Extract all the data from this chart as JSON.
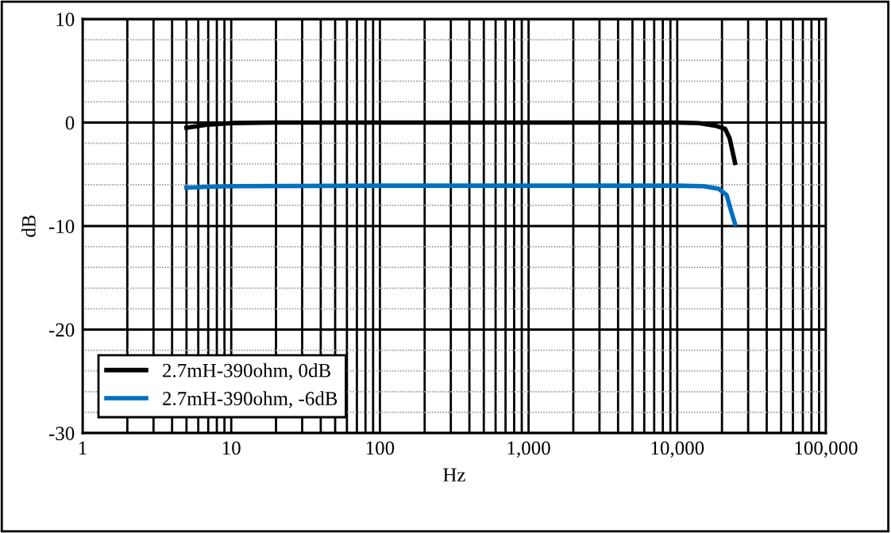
{
  "chart_data": {
    "type": "line",
    "xlabel": "Hz",
    "ylabel": "dB",
    "log": "x",
    "xlim": [
      1,
      100000
    ],
    "xticks": [
      {
        "value": 1,
        "label": "1"
      },
      {
        "value": 2,
        "label": null
      },
      {
        "value": 3,
        "label": null
      },
      {
        "value": 4,
        "label": null
      },
      {
        "value": 5,
        "label": null
      },
      {
        "value": 6,
        "label": null
      },
      {
        "value": 7,
        "label": null
      },
      {
        "value": 8,
        "label": null
      },
      {
        "value": 9,
        "label": null
      },
      {
        "value": 10,
        "label": "10"
      },
      {
        "value": 20,
        "label": null
      },
      {
        "value": 30,
        "label": null
      },
      {
        "value": 40,
        "label": null
      },
      {
        "value": 50,
        "label": null
      },
      {
        "value": 60,
        "label": null
      },
      {
        "value": 70,
        "label": null
      },
      {
        "value": 80,
        "label": null
      },
      {
        "value": 90,
        "label": null
      },
      {
        "value": 100,
        "label": "100"
      },
      {
        "value": 200,
        "label": null
      },
      {
        "value": 300,
        "label": null
      },
      {
        "value": 400,
        "label": null
      },
      {
        "value": 500,
        "label": null
      },
      {
        "value": 600,
        "label": null
      },
      {
        "value": 700,
        "label": null
      },
      {
        "value": 800,
        "label": null
      },
      {
        "value": 900,
        "label": null
      },
      {
        "value": 1000,
        "label": "1,000"
      },
      {
        "value": 2000,
        "label": null
      },
      {
        "value": 3000,
        "label": null
      },
      {
        "value": 4000,
        "label": null
      },
      {
        "value": 5000,
        "label": null
      },
      {
        "value": 6000,
        "label": null
      },
      {
        "value": 7000,
        "label": null
      },
      {
        "value": 8000,
        "label": null
      },
      {
        "value": 9000,
        "label": null
      },
      {
        "value": 10000,
        "label": "10,000"
      },
      {
        "value": 20000,
        "label": null
      },
      {
        "value": 30000,
        "label": null
      },
      {
        "value": 40000,
        "label": null
      },
      {
        "value": 50000,
        "label": null
      },
      {
        "value": 60000,
        "label": null
      },
      {
        "value": 70000,
        "label": null
      },
      {
        "value": 80000,
        "label": null
      },
      {
        "value": 90000,
        "label": null
      },
      {
        "value": 100000,
        "label": "100,000"
      }
    ],
    "ylim": [
      -30,
      10
    ],
    "yticks": [
      {
        "value": -30,
        "label": "-30"
      },
      {
        "value": -28,
        "label": null
      },
      {
        "value": -26,
        "label": null
      },
      {
        "value": -24,
        "label": null
      },
      {
        "value": -22,
        "label": null
      },
      {
        "value": -20,
        "label": "-20"
      },
      {
        "value": -18,
        "label": null
      },
      {
        "value": -16,
        "label": null
      },
      {
        "value": -14,
        "label": null
      },
      {
        "value": -12,
        "label": null
      },
      {
        "value": -10,
        "label": "-10"
      },
      {
        "value": -8,
        "label": null
      },
      {
        "value": -6,
        "label": null
      },
      {
        "value": -4,
        "label": null
      },
      {
        "value": -2,
        "label": null
      },
      0,
      {
        "value": 2,
        "label": null
      },
      {
        "value": 4,
        "label": null
      },
      {
        "value": 6,
        "label": null
      },
      {
        "value": 8,
        "label": null
      },
      10
    ],
    "grid": true,
    "legend": "bottom left",
    "line_style": "solid",
    "series": [
      {
        "name": "2.7mH-390ohm, 0dB",
        "color": "#000000",
        "x": [
          5,
          7,
          10,
          20,
          100,
          10000,
          14000,
          18000,
          21000,
          22500,
          24500
        ],
        "values": [
          -0.5,
          -0.2,
          -0.05,
          0,
          0,
          0,
          -0.05,
          -0.3,
          -0.6,
          -1.5,
          -3.9
        ]
      },
      {
        "name": "2.7mH-390ohm, -6dB",
        "color": "#0070c0",
        "x": [
          5,
          7,
          10,
          100,
          10000,
          15000,
          19000,
          21500,
          23000,
          24500
        ],
        "values": [
          -6.3,
          -6.2,
          -6.15,
          -6.1,
          -6.1,
          -6.15,
          -6.4,
          -7,
          -8.5,
          -9.8
        ]
      }
    ]
  }
}
